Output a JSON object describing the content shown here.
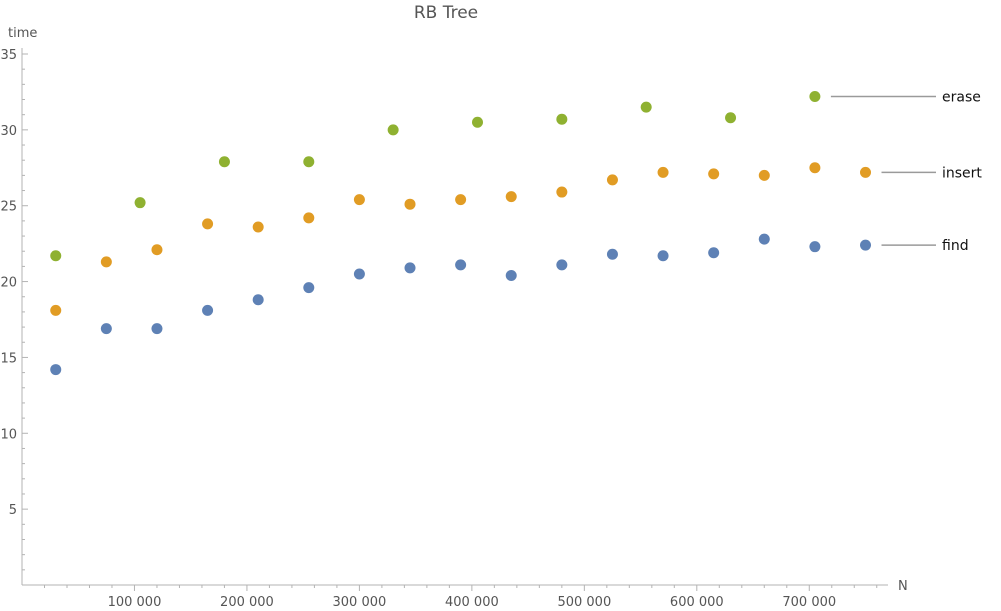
{
  "chart_data": {
    "type": "scatter",
    "title": "RB Tree",
    "xlabel": "N",
    "ylabel": "time",
    "xlim": [
      0,
      770000
    ],
    "ylim": [
      0,
      35
    ],
    "x_ticks": [
      100000,
      200000,
      300000,
      400000,
      500000,
      600000,
      700000
    ],
    "x_tick_labels": [
      "100 000",
      "200 000",
      "300 000",
      "400 000",
      "500 000",
      "600 000",
      "700 000"
    ],
    "y_ticks": [
      5,
      10,
      15,
      20,
      25,
      30,
      35
    ],
    "y_tick_labels": [
      "5",
      "10",
      "15",
      "20",
      "25",
      "30",
      "35"
    ],
    "grid": false,
    "legend": "right, inline labels",
    "series": [
      {
        "name": "erase",
        "color": "#8fb131",
        "points": [
          [
            30000,
            21.7
          ],
          [
            105000,
            25.2
          ],
          [
            180000,
            27.9
          ],
          [
            255000,
            27.9
          ],
          [
            330000,
            30.0
          ],
          [
            405000,
            30.5
          ],
          [
            480000,
            30.7
          ],
          [
            555000,
            31.5
          ],
          [
            630000,
            30.8
          ],
          [
            705000,
            32.2
          ]
        ]
      },
      {
        "name": "insert",
        "color": "#e19c24",
        "points": [
          [
            30000,
            18.1
          ],
          [
            75000,
            21.3
          ],
          [
            120000,
            22.1
          ],
          [
            165000,
            23.8
          ],
          [
            210000,
            23.6
          ],
          [
            255000,
            24.2
          ],
          [
            300000,
            25.4
          ],
          [
            345000,
            25.1
          ],
          [
            390000,
            25.4
          ],
          [
            435000,
            25.6
          ],
          [
            480000,
            25.9
          ],
          [
            525000,
            26.7
          ],
          [
            570000,
            27.2
          ],
          [
            615000,
            27.1
          ],
          [
            660000,
            27.0
          ],
          [
            705000,
            27.5
          ],
          [
            750000,
            27.2
          ]
        ]
      },
      {
        "name": "find",
        "color": "#5e81b5",
        "points": [
          [
            30000,
            14.2
          ],
          [
            75000,
            16.9
          ],
          [
            120000,
            16.9
          ],
          [
            165000,
            18.1
          ],
          [
            210000,
            18.8
          ],
          [
            255000,
            19.6
          ],
          [
            300000,
            20.5
          ],
          [
            345000,
            20.9
          ],
          [
            390000,
            21.1
          ],
          [
            435000,
            20.4
          ],
          [
            480000,
            21.1
          ],
          [
            525000,
            21.8
          ],
          [
            570000,
            21.7
          ],
          [
            615000,
            21.9
          ],
          [
            660000,
            22.8
          ],
          [
            705000,
            22.3
          ],
          [
            750000,
            22.4
          ]
        ]
      }
    ]
  }
}
